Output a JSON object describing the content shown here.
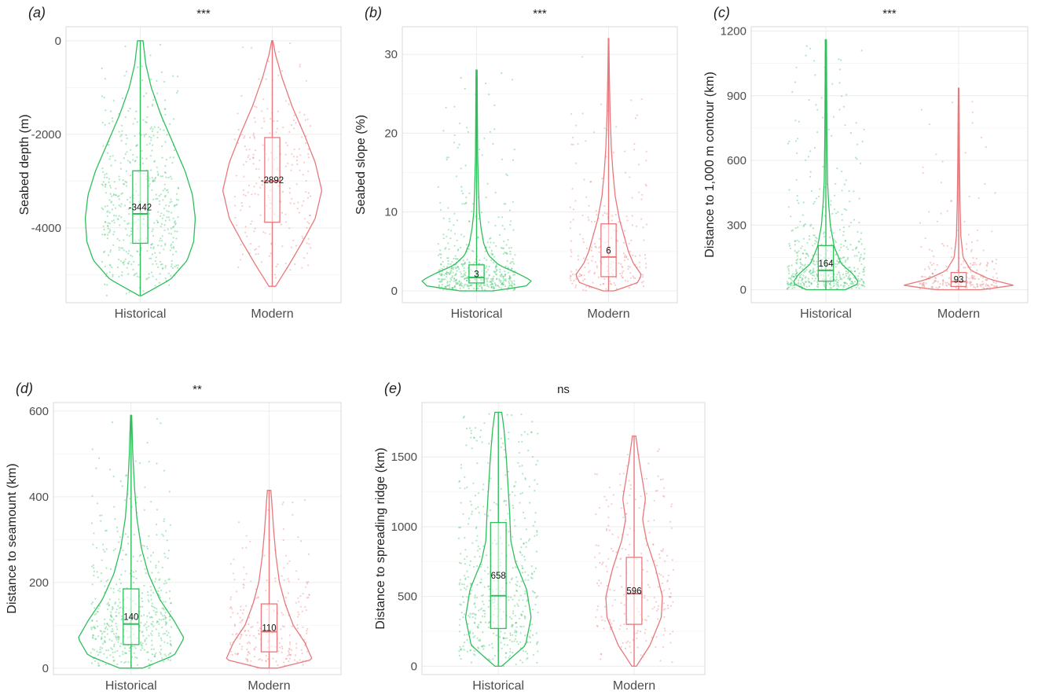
{
  "colors": {
    "historical": "#2ebf5b",
    "modern": "#e8787b",
    "grid": "#ececec",
    "panel_border": "#d9d9d9",
    "text": "#222222",
    "tick_text": "#4d4d4d"
  },
  "chart_data": [
    {
      "type": "violin",
      "panel_label": "(a)",
      "significance": "***",
      "ylabel": "Seabed depth (m)",
      "categories": [
        "Historical",
        "Modern"
      ],
      "ylim": [
        -5600,
        300
      ],
      "yticks": [
        0,
        -2000,
        -4000
      ],
      "ytick_labels": [
        "0",
        "-2000",
        "-4000"
      ],
      "grid": true,
      "series": [
        {
          "category": "Historical",
          "min": -5450,
          "q1": -4330,
          "median": -3700,
          "q3": -2780,
          "max": 0,
          "mean_label": "-3442",
          "density": [
            [
              -5450,
              0.02
            ],
            [
              -5100,
              0.55
            ],
            [
              -4700,
              0.85
            ],
            [
              -4300,
              0.97
            ],
            [
              -3800,
              1.0
            ],
            [
              -3300,
              0.95
            ],
            [
              -2800,
              0.82
            ],
            [
              -2200,
              0.6
            ],
            [
              -1600,
              0.38
            ],
            [
              -1000,
              0.2
            ],
            [
              -500,
              0.1
            ],
            [
              0,
              0.05
            ]
          ]
        },
        {
          "category": "Modern",
          "min": -5250,
          "q1": -3880,
          "median": -3000,
          "q3": -2070,
          "max": 0,
          "mean_label": "-2892",
          "density": [
            [
              -5250,
              0.06
            ],
            [
              -4800,
              0.3
            ],
            [
              -4300,
              0.55
            ],
            [
              -3800,
              0.78
            ],
            [
              -3200,
              0.9
            ],
            [
              -2600,
              0.78
            ],
            [
              -2000,
              0.58
            ],
            [
              -1400,
              0.36
            ],
            [
              -800,
              0.18
            ],
            [
              -300,
              0.06
            ],
            [
              0,
              0.01
            ]
          ]
        }
      ]
    },
    {
      "type": "violin",
      "panel_label": "(b)",
      "significance": "***",
      "ylabel": "Seabed slope (%)",
      "categories": [
        "Historical",
        "Modern"
      ],
      "ylim": [
        -1.5,
        33.5
      ],
      "yticks": [
        0,
        10,
        20,
        30
      ],
      "ytick_labels": [
        "0",
        "10",
        "20",
        "30"
      ],
      "grid": true,
      "series": [
        {
          "category": "Historical",
          "min": 0,
          "q1": 1.0,
          "median": 1.7,
          "q3": 3.3,
          "max": 28,
          "mean_label": "3",
          "density": [
            [
              0,
              0.3
            ],
            [
              0.6,
              0.9
            ],
            [
              1.3,
              1.0
            ],
            [
              2.2,
              0.75
            ],
            [
              3.3,
              0.4
            ],
            [
              4.5,
              0.22
            ],
            [
              6,
              0.13
            ],
            [
              8,
              0.08
            ],
            [
              10,
              0.05
            ],
            [
              13,
              0.035
            ],
            [
              17,
              0.02
            ],
            [
              22,
              0.015
            ],
            [
              28,
              0.01
            ]
          ]
        },
        {
          "category": "Modern",
          "min": 0,
          "q1": 1.8,
          "median": 4.3,
          "q3": 8.5,
          "max": 32,
          "mean_label": "6",
          "density": [
            [
              0,
              0.1
            ],
            [
              1,
              0.52
            ],
            [
              2,
              0.6
            ],
            [
              3.5,
              0.45
            ],
            [
              5,
              0.36
            ],
            [
              7,
              0.28
            ],
            [
              9,
              0.2
            ],
            [
              12,
              0.12
            ],
            [
              15,
              0.08
            ],
            [
              18,
              0.05
            ],
            [
              22,
              0.03
            ],
            [
              27,
              0.015
            ],
            [
              32,
              0.005
            ]
          ]
        }
      ]
    },
    {
      "type": "violin",
      "panel_label": "(c)",
      "significance": "***",
      "ylabel": "Distance to 1,000 m contour (km)",
      "categories": [
        "Historical",
        "Modern"
      ],
      "ylim": [
        -60,
        1220
      ],
      "yticks": [
        0,
        300,
        600,
        900,
        1200
      ],
      "ytick_labels": [
        "0",
        "300",
        "600",
        "900",
        "1200"
      ],
      "grid": true,
      "series": [
        {
          "category": "Historical",
          "min": 0,
          "q1": 40,
          "median": 90,
          "q3": 205,
          "max": 1160,
          "mean_label": "164",
          "density": [
            [
              0,
              0.35
            ],
            [
              30,
              0.6
            ],
            [
              70,
              0.5
            ],
            [
              120,
              0.28
            ],
            [
              200,
              0.15
            ],
            [
              300,
              0.08
            ],
            [
              400,
              0.05
            ],
            [
              500,
              0.03
            ],
            [
              700,
              0.02
            ],
            [
              900,
              0.015
            ],
            [
              1160,
              0.01
            ]
          ]
        },
        {
          "category": "Modern",
          "min": 0,
          "q1": 15,
          "median": 38,
          "q3": 80,
          "max": 935,
          "mean_label": "93",
          "density": [
            [
              0,
              0.4
            ],
            [
              20,
              1.0
            ],
            [
              50,
              0.55
            ],
            [
              90,
              0.22
            ],
            [
              150,
              0.08
            ],
            [
              250,
              0.04
            ],
            [
              400,
              0.025
            ],
            [
              600,
              0.015
            ],
            [
              800,
              0.01
            ],
            [
              935,
              0.005
            ]
          ]
        }
      ]
    },
    {
      "type": "violin",
      "panel_label": "(d)",
      "significance": "**",
      "ylabel": "Distance to seamount (km)",
      "categories": [
        "Historical",
        "Modern"
      ],
      "ylim": [
        -15,
        620
      ],
      "yticks": [
        0,
        200,
        400,
        600
      ],
      "ytick_labels": [
        "0",
        "200",
        "400",
        "600"
      ],
      "grid": true,
      "series": [
        {
          "category": "Historical",
          "min": 0,
          "q1": 55,
          "median": 103,
          "q3": 185,
          "max": 590,
          "mean_label": "140",
          "density": [
            [
              0,
              0.2
            ],
            [
              30,
              0.75
            ],
            [
              70,
              0.92
            ],
            [
              110,
              0.75
            ],
            [
              160,
              0.5
            ],
            [
              220,
              0.3
            ],
            [
              280,
              0.18
            ],
            [
              350,
              0.1
            ],
            [
              420,
              0.06
            ],
            [
              500,
              0.03
            ],
            [
              590,
              0.01
            ]
          ]
        },
        {
          "category": "Modern",
          "min": 0,
          "q1": 38,
          "median": 85,
          "q3": 150,
          "max": 415,
          "mean_label": "110",
          "density": [
            [
              0,
              0.15
            ],
            [
              20,
              0.75
            ],
            [
              60,
              0.62
            ],
            [
              100,
              0.42
            ],
            [
              150,
              0.28
            ],
            [
              200,
              0.18
            ],
            [
              260,
              0.12
            ],
            [
              320,
              0.08
            ],
            [
              380,
              0.05
            ],
            [
              415,
              0.03
            ]
          ]
        }
      ]
    },
    {
      "type": "violin",
      "panel_label": "(e)",
      "significance": "ns",
      "ylabel": "Distance to spreading ridge (km)",
      "categories": [
        "Historical",
        "Modern"
      ],
      "ylim": [
        -60,
        1890
      ],
      "yticks": [
        0,
        500,
        1000,
        1500
      ],
      "ytick_labels": [
        "0",
        "500",
        "1000",
        "1500"
      ],
      "grid": true,
      "series": [
        {
          "category": "Historical",
          "min": 0,
          "q1": 270,
          "median": 505,
          "q3": 1030,
          "max": 1820,
          "mean_label": "658",
          "density": [
            [
              0,
              0.06
            ],
            [
              150,
              0.48
            ],
            [
              350,
              0.58
            ],
            [
              550,
              0.5
            ],
            [
              750,
              0.3
            ],
            [
              900,
              0.22
            ],
            [
              1100,
              0.2
            ],
            [
              1300,
              0.17
            ],
            [
              1500,
              0.14
            ],
            [
              1700,
              0.1
            ],
            [
              1820,
              0.06
            ]
          ]
        },
        {
          "category": "Modern",
          "min": 0,
          "q1": 300,
          "median": 520,
          "q3": 780,
          "max": 1650,
          "mean_label": "596",
          "density": [
            [
              0,
              0.04
            ],
            [
              150,
              0.28
            ],
            [
              350,
              0.48
            ],
            [
              500,
              0.5
            ],
            [
              700,
              0.38
            ],
            [
              900,
              0.22
            ],
            [
              1050,
              0.15
            ],
            [
              1200,
              0.2
            ],
            [
              1350,
              0.14
            ],
            [
              1500,
              0.08
            ],
            [
              1650,
              0.03
            ]
          ]
        }
      ]
    }
  ]
}
